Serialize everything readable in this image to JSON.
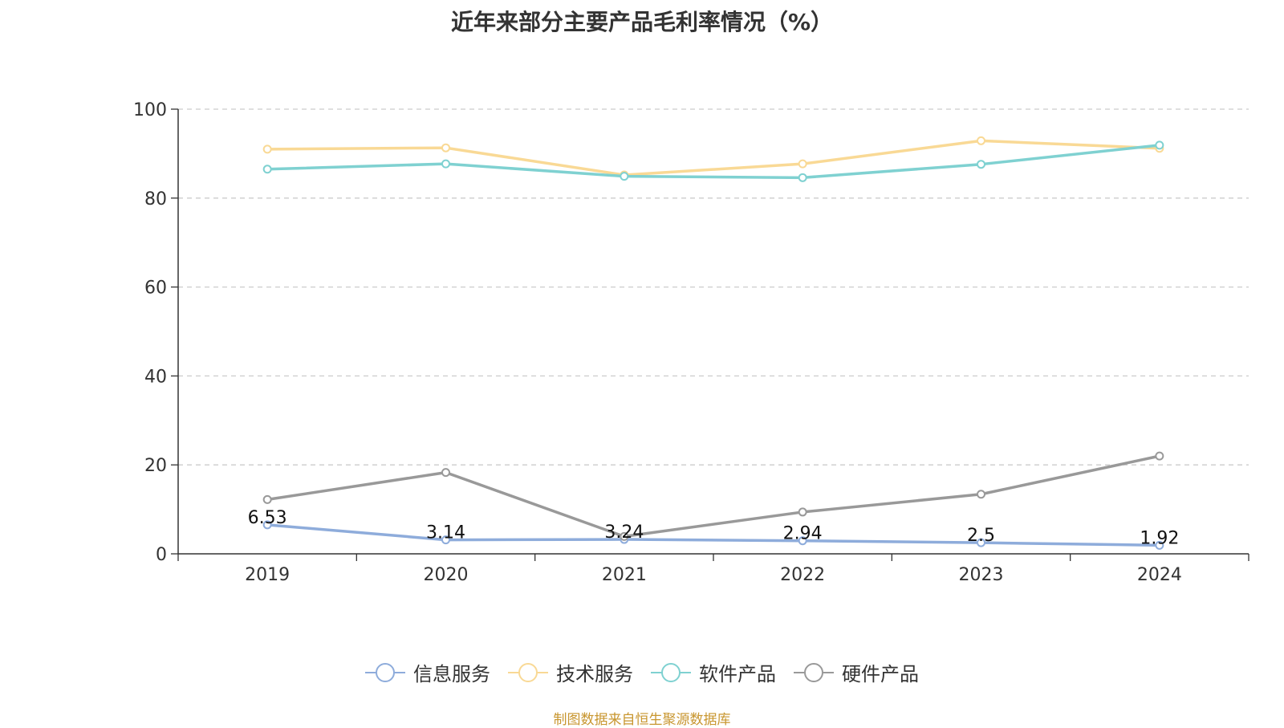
{
  "title": "近年来部分主要产品毛利率情况（%）",
  "source": "制图数据来自恒生聚源数据库",
  "chart_data": {
    "type": "line",
    "title": "近年来部分主要产品毛利率情况（%）",
    "categories": [
      "2019",
      "2020",
      "2021",
      "2022",
      "2023",
      "2024"
    ],
    "ylim": [
      0,
      100
    ],
    "yticks": [
      0,
      20,
      40,
      60,
      80,
      100
    ],
    "grid": true,
    "legend": "bottom",
    "series": [
      {
        "name": "信息服务",
        "color": "#8eacdb",
        "values": [
          6.53,
          3.14,
          3.24,
          2.94,
          2.5,
          1.92
        ],
        "show_labels": true
      },
      {
        "name": "技术服务",
        "color": "#f9d995",
        "values": [
          91.0,
          91.3,
          85.2,
          87.7,
          92.9,
          91.2
        ],
        "show_labels": false
      },
      {
        "name": "软件产品",
        "color": "#7fd1d1",
        "values": [
          86.5,
          87.7,
          84.9,
          84.6,
          87.6,
          91.9
        ],
        "show_labels": false
      },
      {
        "name": "硬件产品",
        "color": "#999999",
        "values": [
          12.2,
          18.3,
          3.9,
          9.4,
          13.4,
          22.0
        ],
        "show_labels": false
      }
    ]
  }
}
